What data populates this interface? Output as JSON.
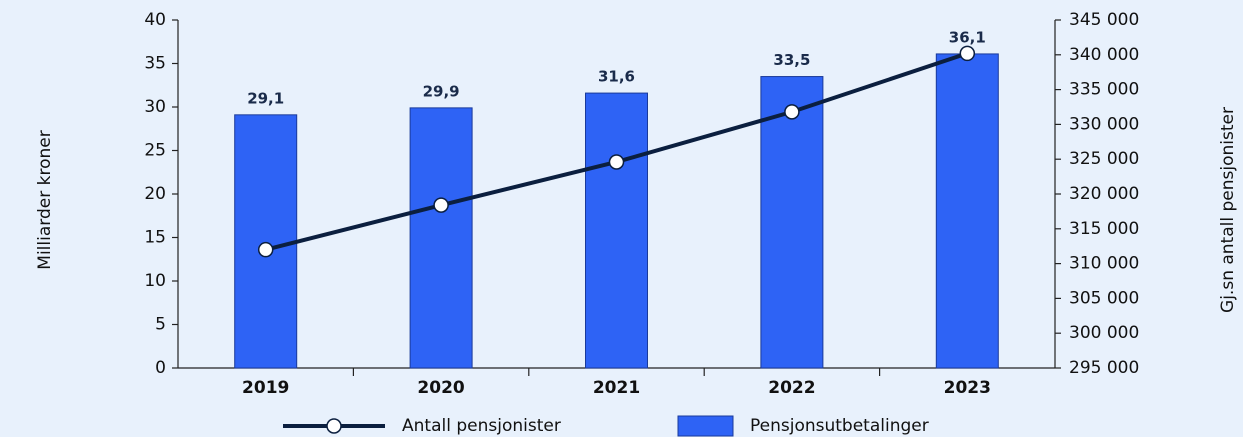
{
  "chart_data": {
    "type": "bar",
    "categories": [
      "2019",
      "2020",
      "2021",
      "2022",
      "2023"
    ],
    "series": [
      {
        "name": "Pensjonsutbetalinger",
        "type": "bar",
        "color": "#2e63f5",
        "values": [
          29.1,
          29.9,
          31.6,
          33.5,
          36.1
        ],
        "value_labels": [
          "29,1",
          "29,9",
          "31,6",
          "33,5",
          "36,1"
        ]
      },
      {
        "name": "Antall pensjonister",
        "type": "line",
        "axis": "y2",
        "color": "#0b1f3f",
        "values": [
          312000,
          318400,
          324600,
          331800,
          340200
        ]
      }
    ],
    "ylabel": "Milliarder kroner",
    "y2label": "Gj.sn antall pensjonister",
    "ylim": [
      0,
      40
    ],
    "yticks": [
      0,
      5,
      10,
      15,
      20,
      25,
      30,
      35,
      40
    ],
    "y2lim": [
      295000,
      345000
    ],
    "y2ticks": [
      {
        "value": 295000,
        "label": "295 000"
      },
      {
        "value": 300000,
        "label": "300 000"
      },
      {
        "value": 305000,
        "label": "305 000"
      },
      {
        "value": 310000,
        "label": "310 000"
      },
      {
        "value": 315000,
        "label": "315 000"
      },
      {
        "value": 320000,
        "label": "320 000"
      },
      {
        "value": 325000,
        "label": "325 000"
      },
      {
        "value": 330000,
        "label": "330 000"
      },
      {
        "value": 335000,
        "label": "335 000"
      },
      {
        "value": 340000,
        "label": "340 000"
      },
      {
        "value": 345000,
        "label": "345 000"
      }
    ],
    "grid": false,
    "legend": "bottom"
  }
}
